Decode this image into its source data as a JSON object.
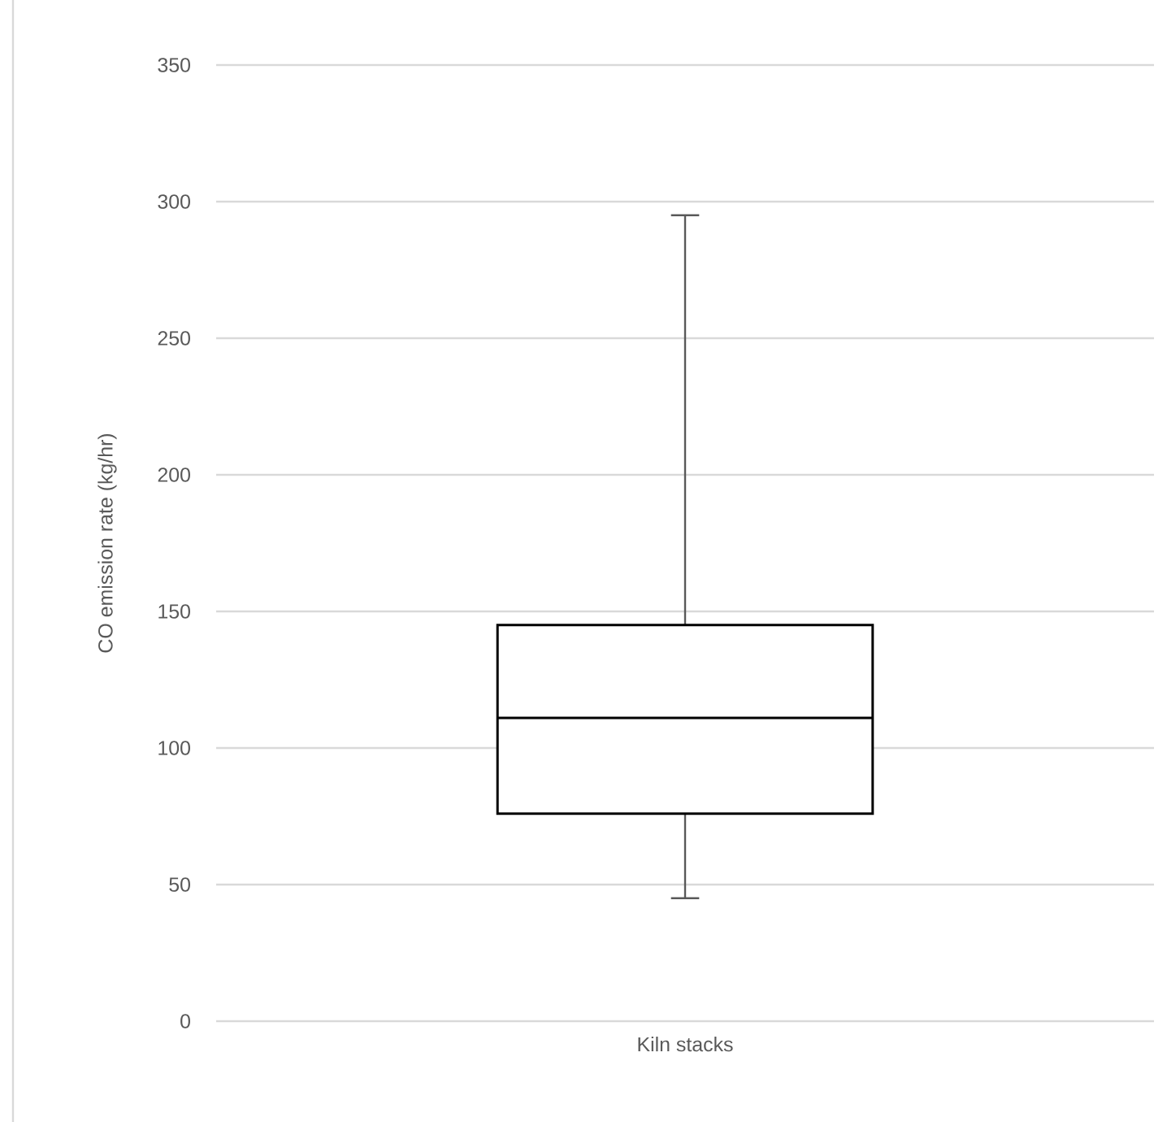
{
  "chart_data": {
    "type": "box",
    "ylabel": "CO emission rate (kg/hr)",
    "categories": [
      "Kiln stacks"
    ],
    "boxes": [
      {
        "low": 45,
        "q1": 76,
        "median": 111,
        "q3": 145,
        "high": 295
      }
    ],
    "color": "#000000",
    "ylim": [
      0,
      350
    ],
    "yticks": [
      0,
      50,
      100,
      150,
      200,
      250,
      300,
      350
    ],
    "grid": "y"
  }
}
